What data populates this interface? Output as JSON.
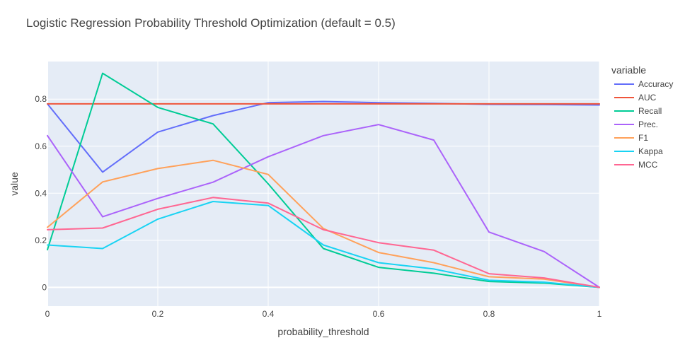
{
  "chart_data": {
    "type": "line",
    "title": "Logistic Regression Probability Threshold Optimization (default = 0.5)",
    "xlabel": "probability_threshold",
    "ylabel": "value",
    "xlim": [
      0,
      1
    ],
    "ylim": [
      -0.08,
      0.96
    ],
    "x": [
      0,
      0.1,
      0.2,
      0.3,
      0.4,
      0.5,
      0.6,
      0.7,
      0.8,
      0.9,
      1.0
    ],
    "x_ticks": [
      0,
      0.2,
      0.4,
      0.6,
      0.8,
      1
    ],
    "x_tick_labels": [
      "0",
      "0.2",
      "0.4",
      "0.6",
      "0.8",
      "1"
    ],
    "y_ticks": [
      0,
      0.2,
      0.4,
      0.6,
      0.8
    ],
    "y_tick_labels": [
      "0",
      "0.2",
      "0.4",
      "0.6",
      "0.8"
    ],
    "grid": true,
    "legend_title": "variable",
    "legend_position": "right",
    "plot_background": "#e5ecf6",
    "series": [
      {
        "name": "Accuracy",
        "color": "#636efa",
        "values": [
          0.78,
          0.49,
          0.66,
          0.73,
          0.785,
          0.79,
          0.785,
          0.782,
          0.778,
          0.777,
          0.775
        ]
      },
      {
        "name": "AUC",
        "color": "#ef553b",
        "values": [
          0.78,
          0.78,
          0.78,
          0.78,
          0.78,
          0.78,
          0.78,
          0.78,
          0.78,
          0.78,
          0.78
        ]
      },
      {
        "name": "Recall",
        "color": "#00cc96",
        "values": [
          0.16,
          0.91,
          0.765,
          0.695,
          0.44,
          0.165,
          0.085,
          0.06,
          0.025,
          0.018,
          0.0
        ]
      },
      {
        "name": "Prec.",
        "color": "#ab63fa",
        "values": [
          0.645,
          0.3,
          0.378,
          0.447,
          0.555,
          0.645,
          0.692,
          0.626,
          0.235,
          0.152,
          0.0
        ]
      },
      {
        "name": "F1",
        "color": "#ffa15a",
        "values": [
          0.255,
          0.448,
          0.505,
          0.54,
          0.48,
          0.25,
          0.148,
          0.105,
          0.045,
          0.035,
          0.0
        ]
      },
      {
        "name": "Kappa",
        "color": "#19d3f3",
        "values": [
          0.18,
          0.165,
          0.29,
          0.365,
          0.348,
          0.18,
          0.105,
          0.078,
          0.03,
          0.022,
          0.0
        ]
      },
      {
        "name": "MCC",
        "color": "#ff6692",
        "values": [
          0.245,
          0.252,
          0.332,
          0.382,
          0.358,
          0.245,
          0.19,
          0.158,
          0.058,
          0.04,
          0.0
        ]
      }
    ]
  }
}
